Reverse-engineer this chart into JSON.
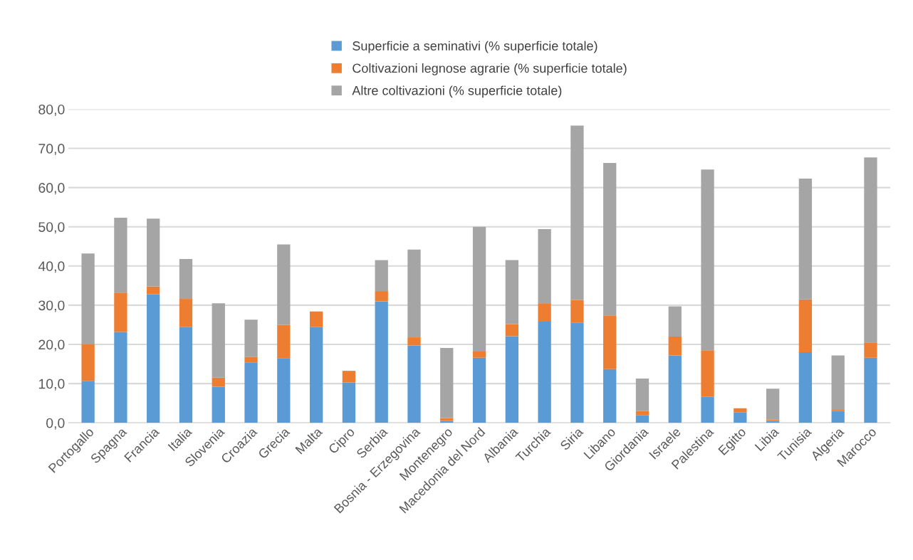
{
  "chart_data": {
    "type": "bar",
    "stacked": true,
    "categories": [
      "Portogallo",
      "Spagna",
      "Francia",
      "Italia",
      "Slovenia",
      "Croazia",
      "Grecia",
      "Malta",
      "Cipro",
      "Serbia",
      "Bosnia - Erzegovina",
      "Montenegro",
      "Macedonia del Nord",
      "Albania",
      "Turchia",
      "Siria",
      "Libano",
      "Giordania",
      "Israele",
      "Palestina",
      "Egitto",
      "Libia",
      "Tunisia",
      "Algeria",
      "Marocco"
    ],
    "series": [
      {
        "name": "Superficie a seminativi (% superficie totale)",
        "color": "#5b9bd5",
        "values": [
          10.7,
          23.2,
          32.8,
          24.4,
          9.2,
          15.4,
          16.5,
          24.4,
          10.3,
          31.0,
          19.7,
          0.5,
          16.6,
          22.1,
          25.8,
          25.6,
          13.7,
          1.9,
          17.2,
          6.6,
          2.6,
          0.5,
          18.0,
          3.0,
          16.6
        ]
      },
      {
        "name": "Coltivazioni legnose agrarie (% superficie totale)",
        "color": "#ed7d31",
        "values": [
          9.3,
          10.0,
          2.0,
          7.2,
          2.3,
          1.4,
          8.5,
          4.0,
          2.8,
          2.6,
          2.1,
          0.7,
          1.6,
          3.1,
          4.7,
          5.7,
          13.7,
          1.1,
          4.8,
          11.9,
          1.1,
          0.3,
          13.5,
          0.3,
          3.9
        ]
      },
      {
        "name": "Altre coltivazioni (% superficie totale)",
        "color": "#a5a5a5",
        "values": [
          23.2,
          19.1,
          17.3,
          10.2,
          19.0,
          9.5,
          20.5,
          0.0,
          0.2,
          7.9,
          22.4,
          17.9,
          31.8,
          16.3,
          18.9,
          44.5,
          38.9,
          8.3,
          7.7,
          46.1,
          0.0,
          7.9,
          30.8,
          13.9,
          47.2
        ]
      }
    ],
    "ylim": [
      0,
      80
    ],
    "yticks": [
      {
        "value": 0,
        "label": "0,0"
      },
      {
        "value": 10,
        "label": "10,0"
      },
      {
        "value": 20,
        "label": "20,0"
      },
      {
        "value": 30,
        "label": "30,0"
      },
      {
        "value": 40,
        "label": "40,0"
      },
      {
        "value": 50,
        "label": "50,0"
      },
      {
        "value": 60,
        "label": "60,0"
      },
      {
        "value": 70,
        "label": "70,0"
      },
      {
        "value": 80,
        "label": "80,0"
      }
    ],
    "grid": "y",
    "legend": "top"
  }
}
